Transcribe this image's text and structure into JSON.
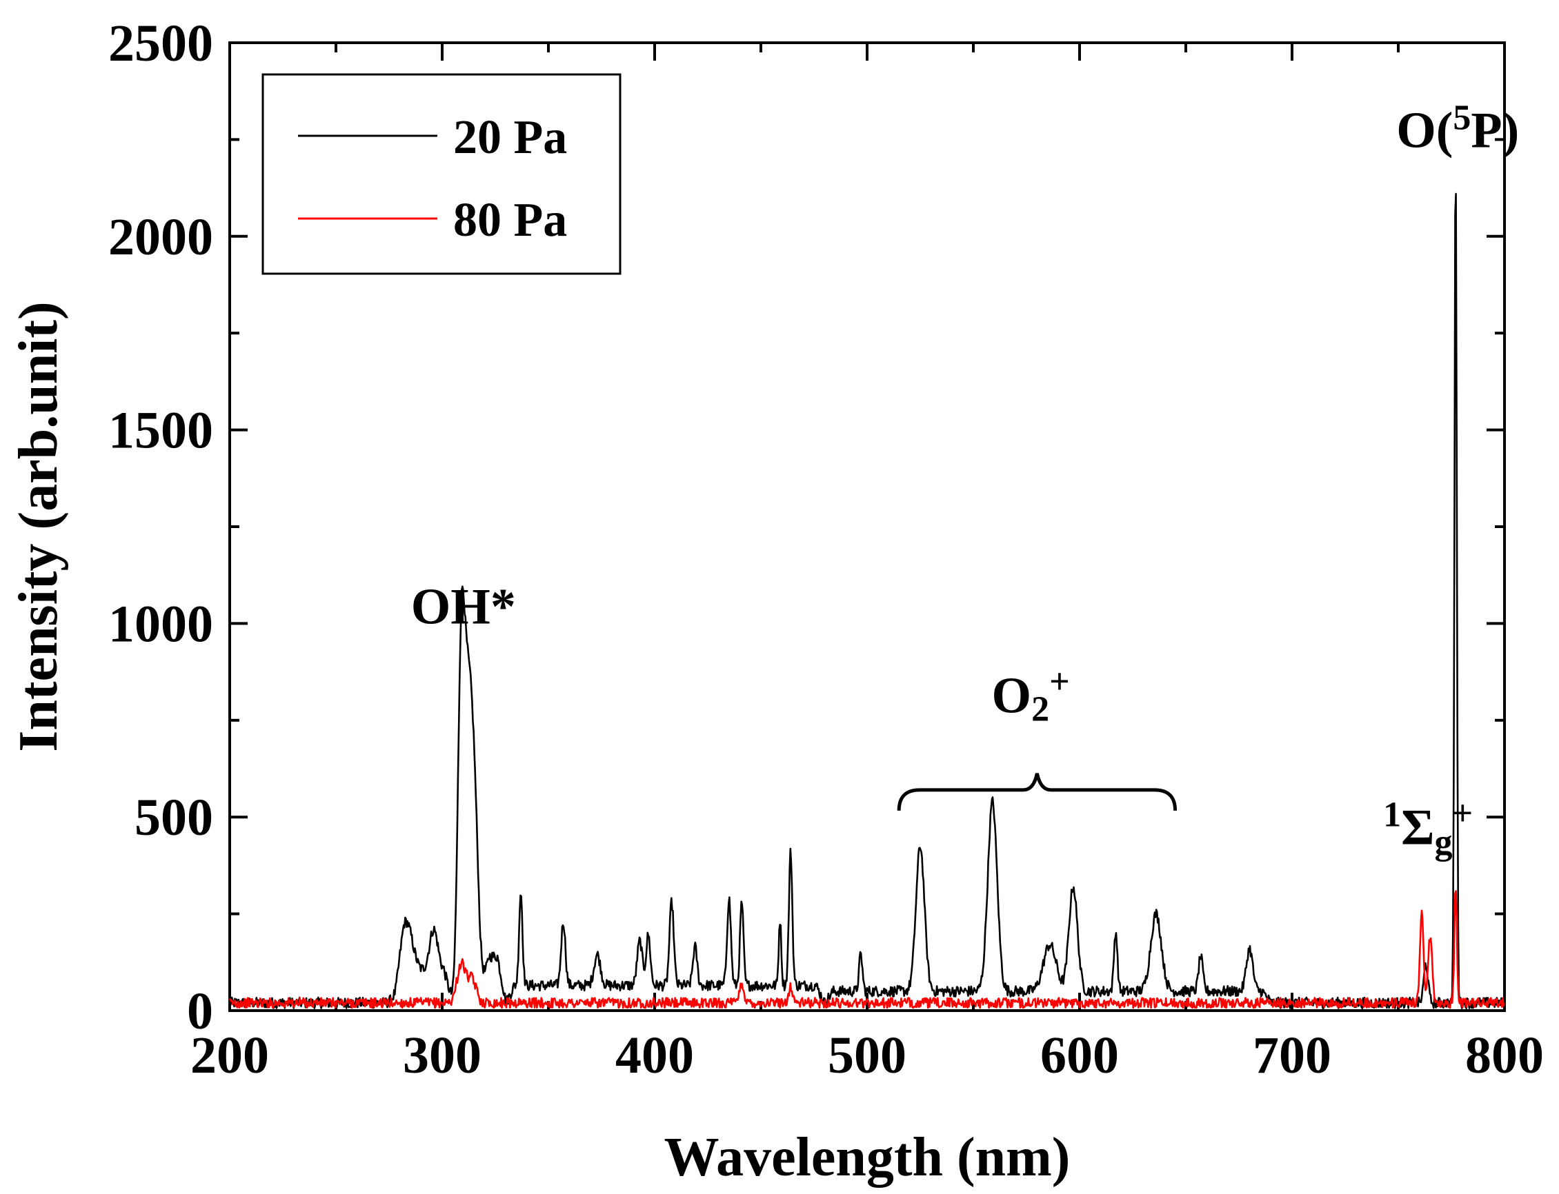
{
  "chart_data": {
    "type": "line",
    "title": "",
    "xlabel": "Wavelength (nm)",
    "ylabel": "Intensity (arb.unit)",
    "xlim": [
      200,
      800
    ],
    "ylim": [
      0,
      2500
    ],
    "xticks": [
      200,
      300,
      400,
      500,
      600,
      700,
      800
    ],
    "yticks": [
      0,
      500,
      1000,
      1500,
      2000,
      2500
    ],
    "grid": false,
    "legend_position": "top-left",
    "series": [
      {
        "name": "20 Pa",
        "color": "#000000",
        "baseline": 20,
        "noise": 14,
        "shoulders": [
          {
            "x0": 278,
            "x1": 305,
            "level": 80
          },
          {
            "x0": 318,
            "x1": 330,
            "level": 120
          },
          {
            "x0": 330,
            "x1": 480,
            "level": 45
          },
          {
            "x0": 480,
            "x1": 690,
            "level": 30
          }
        ],
        "peaks": [
          {
            "x": 283,
            "y": 130,
            "w": 3
          },
          {
            "x": 296,
            "y": 110,
            "w": 2
          },
          {
            "x": 309,
            "y": 880,
            "w": 1.6
          },
          {
            "x": 312,
            "y": 590,
            "w": 1.8
          },
          {
            "x": 315,
            "y": 520,
            "w": 2.0
          },
          {
            "x": 337,
            "y": 240,
            "w": 0.8
          },
          {
            "x": 357,
            "y": 165,
            "w": 1.0
          },
          {
            "x": 373,
            "y": 80,
            "w": 1.5
          },
          {
            "x": 393,
            "y": 115,
            "w": 1.2
          },
          {
            "x": 397,
            "y": 130,
            "w": 1.0
          },
          {
            "x": 408,
            "y": 215,
            "w": 1.0
          },
          {
            "x": 419,
            "y": 100,
            "w": 1.0
          },
          {
            "x": 435,
            "y": 225,
            "w": 0.9
          },
          {
            "x": 441,
            "y": 215,
            "w": 0.8
          },
          {
            "x": 459,
            "y": 170,
            "w": 0.6
          },
          {
            "x": 464,
            "y": 345,
            "w": 0.8
          },
          {
            "x": 497,
            "y": 95,
            "w": 0.8
          },
          {
            "x": 525,
            "y": 375,
            "w": 2.0
          },
          {
            "x": 559,
            "y": 490,
            "w": 2.2
          },
          {
            "x": 586,
            "y": 120,
            "w": 3.0
          },
          {
            "x": 597,
            "y": 270,
            "w": 2.0
          },
          {
            "x": 617,
            "y": 155,
            "w": 0.8
          },
          {
            "x": 636,
            "y": 200,
            "w": 2.5
          },
          {
            "x": 657,
            "y": 90,
            "w": 1.0
          },
          {
            "x": 680,
            "y": 110,
            "w": 1.5
          },
          {
            "x": 763,
            "y": 100,
            "w": 1.0
          },
          {
            "x": 777,
            "y": 2170,
            "w": 0.55
          }
        ]
      },
      {
        "name": "80 Pa",
        "color": "#ff0000",
        "baseline": 20,
        "noise": 13,
        "shoulders": [],
        "peaks": [
          {
            "x": 309,
            "y": 100,
            "w": 2.0
          },
          {
            "x": 314,
            "y": 60,
            "w": 2.0
          },
          {
            "x": 441,
            "y": 50,
            "w": 1.0
          },
          {
            "x": 464,
            "y": 40,
            "w": 1.0
          },
          {
            "x": 761,
            "y": 240,
            "w": 0.8
          },
          {
            "x": 765,
            "y": 170,
            "w": 1.0
          },
          {
            "x": 777,
            "y": 290,
            "w": 0.6
          }
        ]
      }
    ],
    "annotations": [
      {
        "id": "oh",
        "text": "OH*",
        "x": 310,
        "y": 1000
      },
      {
        "id": "o2plus",
        "text": "O",
        "sub": "2",
        "sup": "+",
        "x": 577,
        "y": 770
      },
      {
        "id": "o5p",
        "text": "O(",
        "sup": "5",
        "after": "P)",
        "x": 778,
        "y": 2230
      },
      {
        "id": "sigma",
        "pre_sup": "1",
        "text": "Σ",
        "sub": "g",
        "sup": "+",
        "x": 764,
        "y": 430
      }
    ],
    "brace": {
      "x0": 515,
      "x1": 645,
      "y": 570
    }
  }
}
